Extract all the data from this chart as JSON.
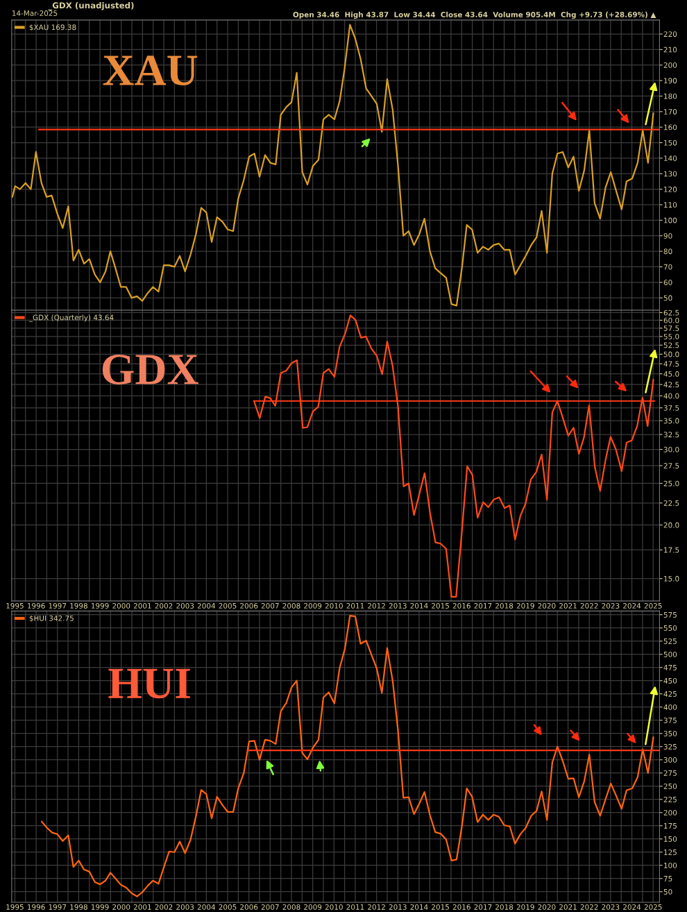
{
  "chart_data": [
    {
      "type": "line",
      "title": "_GDX (unadjusted)",
      "subtitle": "14-Mar-2025",
      "annotations": [
        "Open 34.46  High 43.87  Low 34.44  Close 43.64  Volume 905.4M  Chg +9.73 (+28.69%) ▲",
        "XAU"
      ],
      "series": [
        {
          "name": "$XAU 169.38",
          "color": "#d9a023",
          "x": [
            1994.88,
            1995.01,
            1995.24,
            1995.5,
            1995.75,
            1995.99,
            1996.25,
            1996.49,
            1996.73,
            1997.0,
            1997.25,
            1997.51,
            1997.75,
            1998.0,
            1998.25,
            1998.5,
            1998.76,
            1999.01,
            1999.26,
            1999.49,
            1999.73,
            1999.98,
            2000.23,
            2000.49,
            2000.74,
            2000.99,
            2001.24,
            2001.49,
            2001.75,
            2002.0,
            2002.25,
            2002.5,
            2002.75,
            2003.0,
            2003.26,
            2003.51,
            2003.76,
            2004.0,
            2004.25,
            2004.5,
            2004.76,
            2005.01,
            2005.26,
            2005.5,
            2005.76,
            2006.01,
            2006.26,
            2006.5,
            2006.76,
            2007.01,
            2007.26,
            2007.5,
            2007.76,
            2008.0,
            2008.25,
            2008.51,
            2008.75,
            2009.01,
            2009.27,
            2009.5,
            2009.75,
            2010.02,
            2010.27,
            2010.49,
            2010.75,
            2011.0,
            2011.25,
            2011.51,
            2011.76,
            2012.01,
            2012.25,
            2012.5,
            2012.76,
            2013.01,
            2013.26,
            2013.51,
            2013.76,
            2014.01,
            2014.25,
            2014.51,
            2014.76,
            2015.01,
            2015.27,
            2015.52,
            2015.76,
            2016.02,
            2016.24,
            2016.49,
            2016.75,
            2017.0,
            2017.25,
            2017.5,
            2017.75,
            2018.0,
            2018.26,
            2018.51,
            2018.76,
            2019.01,
            2019.27,
            2019.52,
            2019.76,
            2020.01,
            2020.26,
            2020.5,
            2020.75,
            2021.01,
            2021.26,
            2021.51,
            2021.76,
            2022.0,
            2022.25,
            2022.51,
            2022.76,
            2023.01,
            2023.26,
            2023.52,
            2023.75,
            2024.02,
            2024.27,
            2024.51,
            2024.76,
            2025.01
          ],
          "values": [
            115,
            122,
            120,
            124,
            120,
            144,
            124,
            115,
            116,
            104,
            95,
            109,
            74,
            81,
            72,
            75,
            65,
            60,
            67,
            80,
            69,
            57,
            57,
            50,
            51,
            48,
            53,
            57,
            54,
            71,
            71,
            70,
            77,
            67,
            78,
            91,
            108,
            105,
            86,
            102,
            99,
            94,
            93,
            114,
            126,
            141,
            143,
            128,
            142,
            137,
            136,
            168,
            173,
            176,
            195,
            131,
            123,
            135,
            139,
            165,
            168,
            165,
            177,
            197,
            226,
            217,
            204,
            185,
            180,
            175,
            157,
            191,
            171,
            135,
            90,
            93,
            84,
            91,
            101,
            80,
            69,
            66,
            63,
            46,
            45,
            70,
            97,
            94,
            79,
            83,
            81,
            84,
            85,
            81,
            81,
            65,
            71,
            77,
            84,
            89,
            106,
            79,
            130,
            143,
            144,
            134,
            141,
            119,
            132,
            158,
            111,
            101,
            121,
            131,
            119,
            107,
            125,
            127,
            137,
            158,
            137,
            169
          ]
        },
        {
          "color": "#ff3a1a",
          "x": [
            1996.12,
            2025.3
          ],
          "values": [
            158.5,
            158.5
          ]
        }
      ],
      "xlim": [
        1994.85,
        2025.3
      ],
      "ylim": [
        42,
        229
      ],
      "xticks": [
        1995,
        {
          "value": 1995.5,
          "label": null
        },
        1996,
        {
          "value": 1996.5,
          "label": null
        },
        1997,
        {
          "value": 1997.5,
          "label": null
        },
        1998,
        {
          "value": 1998.5,
          "label": null
        },
        1999,
        {
          "value": 1999.5,
          "label": null
        },
        2000,
        {
          "value": 2000.5,
          "label": null
        },
        2001,
        {
          "value": 2001.5,
          "label": null
        },
        2002,
        {
          "value": 2002.5,
          "label": null
        },
        2003,
        {
          "value": 2003.5,
          "label": null
        },
        2004,
        {
          "value": 2004.5,
          "label": null
        },
        2005,
        {
          "value": 2005.5,
          "label": null
        },
        2006,
        {
          "value": 2006.5,
          "label": null
        },
        2007,
        {
          "value": 2007.5,
          "label": null
        },
        2008,
        {
          "value": 2008.5,
          "label": null
        },
        2009,
        {
          "value": 2009.5,
          "label": null
        },
        2010,
        {
          "value": 2010.5,
          "label": null
        },
        2011,
        {
          "value": 2011.5,
          "label": null
        },
        2012,
        {
          "value": 2012.5,
          "label": null
        },
        2013,
        {
          "value": 2013.5,
          "label": null
        },
        2014,
        {
          "value": 2014.5,
          "label": null
        },
        2015,
        {
          "value": 2015.5,
          "label": null
        },
        2016,
        {
          "value": 2016.5,
          "label": null
        },
        2017,
        {
          "value": 2017.5,
          "label": null
        },
        2018,
        {
          "value": 2018.5,
          "label": null
        },
        2019,
        {
          "value": 2019.5,
          "label": null
        },
        2020,
        {
          "value": 2020.5,
          "label": null
        },
        2021,
        {
          "value": 2021.5,
          "label": null
        },
        2022,
        {
          "value": 2022.5,
          "label": null
        },
        2023,
        {
          "value": 2023.5,
          "label": null
        },
        2024,
        {
          "value": 2024.5,
          "label": null
        },
        2025
      ],
      "yticks": [
        50,
        60,
        70,
        80,
        90,
        100,
        110,
        120,
        130,
        140,
        150,
        160,
        170,
        180,
        190,
        200,
        210,
        220
      ],
      "tick_labels": "y",
      "grid": true,
      "legend": "top left"
    },
    {
      "type": "line",
      "log": true,
      "annotations": [
        "GDX"
      ],
      "series": [
        {
          "name": "_GDX (Quarterly) 43.64",
          "color": "#ff4a1a",
          "x": [
            2006.24,
            2006.51,
            2006.77,
            2007.0,
            2007.24,
            2007.5,
            2007.76,
            2008.01,
            2008.26,
            2008.53,
            2008.75,
            2009.01,
            2009.26,
            2009.5,
            2009.75,
            2010.02,
            2010.26,
            2010.52,
            2010.77,
            2011.01,
            2011.27,
            2011.5,
            2011.76,
            2012.01,
            2012.26,
            2012.5,
            2012.75,
            2013.01,
            2013.27,
            2013.51,
            2013.76,
            2014.0,
            2014.26,
            2014.51,
            2014.77,
            2015.01,
            2015.27,
            2015.52,
            2015.74,
            2016.01,
            2016.26,
            2016.5,
            2016.75,
            2017.01,
            2017.25,
            2017.5,
            2017.76,
            2018.02,
            2018.26,
            2018.51,
            2018.76,
            2019.0,
            2019.25,
            2019.51,
            2019.76,
            2020.01,
            2020.26,
            2020.5,
            2020.75,
            2021.01,
            2021.26,
            2021.51,
            2021.75,
            2021.99,
            2022.26,
            2022.51,
            2022.76,
            2023.0,
            2023.25,
            2023.52,
            2023.75,
            2024.0,
            2024.25,
            2024.5,
            2024.74,
            2025.01
          ],
          "values": [
            38.9,
            35.5,
            39.8,
            39.5,
            37.9,
            45.2,
            45.8,
            47.7,
            48.4,
            33.7,
            33.8,
            36.8,
            37.7,
            45.2,
            46.2,
            44.3,
            52.0,
            55.8,
            61.6,
            60.1,
            54.6,
            55.0,
            51.5,
            49.6,
            44.9,
            53.5,
            47.1,
            37.7,
            24.6,
            25.0,
            21.1,
            23.5,
            26.4,
            21.4,
            18.2,
            18.1,
            17.6,
            13.6,
            13.6,
            19.3,
            27.4,
            26.2,
            20.8,
            22.6,
            22.0,
            22.9,
            23.2,
            21.9,
            22.2,
            18.5,
            21.0,
            22.4,
            25.5,
            26.6,
            29.2,
            22.9,
            36.6,
            38.9,
            35.6,
            32.3,
            33.7,
            29.3,
            32.0,
            38.0,
            27.3,
            24.0,
            28.3,
            32.1,
            30.0,
            26.7,
            31.1,
            31.5,
            34.0,
            39.6,
            34.0,
            43.64
          ]
        },
        {
          "color": "#ff3a1a",
          "x": [
            2006.24,
            2025.07
          ],
          "values": [
            38.9,
            38.9
          ]
        }
      ],
      "xlim": [
        1994.85,
        2025.3
      ],
      "ylim": [
        13.3,
        63.3
      ],
      "xticks": [
        1995,
        {
          "value": 1995.5,
          "label": null
        },
        1996,
        {
          "value": 1996.5,
          "label": null
        },
        1997,
        {
          "value": 1997.5,
          "label": null
        },
        1998,
        {
          "value": 1998.5,
          "label": null
        },
        1999,
        {
          "value": 1999.5,
          "label": null
        },
        2000,
        {
          "value": 2000.5,
          "label": null
        },
        2001,
        {
          "value": 2001.5,
          "label": null
        },
        2002,
        {
          "value": 2002.5,
          "label": null
        },
        2003,
        {
          "value": 2003.5,
          "label": null
        },
        2004,
        {
          "value": 2004.5,
          "label": null
        },
        2005,
        {
          "value": 2005.5,
          "label": null
        },
        2006,
        {
          "value": 2006.5,
          "label": null
        },
        2007,
        {
          "value": 2007.5,
          "label": null
        },
        2008,
        {
          "value": 2008.5,
          "label": null
        },
        2009,
        {
          "value": 2009.5,
          "label": null
        },
        2010,
        {
          "value": 2010.5,
          "label": null
        },
        2011,
        {
          "value": 2011.5,
          "label": null
        },
        2012,
        {
          "value": 2012.5,
          "label": null
        },
        2013,
        {
          "value": 2013.5,
          "label": null
        },
        2014,
        {
          "value": 2014.5,
          "label": null
        },
        2015,
        {
          "value": 2015.5,
          "label": null
        },
        2016,
        {
          "value": 2016.5,
          "label": null
        },
        2017,
        {
          "value": 2017.5,
          "label": null
        },
        2018,
        {
          "value": 2018.5,
          "label": null
        },
        2019,
        {
          "value": 2019.5,
          "label": null
        },
        2020,
        {
          "value": 2020.5,
          "label": null
        },
        2021,
        {
          "value": 2021.5,
          "label": null
        },
        2022,
        {
          "value": 2022.5,
          "label": null
        },
        2023,
        {
          "value": 2023.5,
          "label": null
        },
        2024,
        {
          "value": 2024.5,
          "label": null
        },
        2025
      ],
      "yticks": [
        {
          "value": 15,
          "label": "15.0"
        },
        17.5,
        {
          "value": 20,
          "label": "20.0"
        },
        22.5,
        {
          "value": 25,
          "label": "25.0"
        },
        27.5,
        {
          "value": 30,
          "label": "30.0"
        },
        32.5,
        {
          "value": 35,
          "label": "35.0"
        },
        37.5,
        {
          "value": 40,
          "label": "40.0"
        },
        42.5,
        {
          "value": 45,
          "label": "45.0"
        },
        47.5,
        {
          "value": 50,
          "label": "50.0"
        },
        52.5,
        {
          "value": 55,
          "label": "55.0"
        },
        57.5,
        {
          "value": 60,
          "label": "60.0"
        },
        62.5
      ],
      "grid": true,
      "legend": "top left"
    },
    {
      "type": "line",
      "annotations": [
        "HUI"
      ],
      "series": [
        {
          "name": "$HUI 342.75",
          "color": "#ff6410",
          "x": [
            1996.26,
            1996.51,
            1996.75,
            1997.0,
            1997.25,
            1997.51,
            1997.75,
            1998.0,
            1998.25,
            1998.5,
            1998.76,
            1999.01,
            1999.26,
            1999.49,
            1999.73,
            1999.98,
            2000.23,
            2000.49,
            2000.74,
            2000.99,
            2001.24,
            2001.49,
            2001.75,
            2002.0,
            2002.25,
            2002.5,
            2002.75,
            2003.0,
            2003.26,
            2003.51,
            2003.76,
            2004.0,
            2004.25,
            2004.5,
            2004.76,
            2005.01,
            2005.26,
            2005.5,
            2005.76,
            2006.01,
            2006.26,
            2006.5,
            2006.76,
            2007.01,
            2007.26,
            2007.5,
            2007.76,
            2008.0,
            2008.25,
            2008.51,
            2008.75,
            2009.01,
            2009.27,
            2009.5,
            2009.75,
            2010.02,
            2010.27,
            2010.51,
            2010.75,
            2011.0,
            2011.25,
            2011.51,
            2011.76,
            2012.01,
            2012.25,
            2012.5,
            2012.76,
            2013.01,
            2013.26,
            2013.51,
            2013.76,
            2014.01,
            2014.25,
            2014.51,
            2014.76,
            2015.01,
            2015.27,
            2015.52,
            2015.76,
            2016.02,
            2016.24,
            2016.49,
            2016.75,
            2017.0,
            2017.25,
            2017.5,
            2017.75,
            2018.0,
            2018.26,
            2018.51,
            2018.76,
            2019.01,
            2019.27,
            2019.52,
            2019.76,
            2020.01,
            2020.26,
            2020.5,
            2020.75,
            2021.01,
            2021.26,
            2021.51,
            2021.76,
            2022.0,
            2022.25,
            2022.51,
            2022.76,
            2023.01,
            2023.26,
            2023.52,
            2023.75,
            2024.02,
            2024.27,
            2024.51,
            2024.76,
            2025.01
          ],
          "values": [
            183,
            171,
            162,
            159,
            146,
            157,
            97,
            109,
            92,
            88,
            68,
            64,
            71,
            86,
            75,
            63,
            58,
            47,
            41,
            49,
            61,
            71,
            65,
            96,
            126,
            125,
            145,
            123,
            149,
            193,
            243,
            235,
            189,
            230,
            214,
            201,
            201,
            246,
            275,
            335,
            336,
            300,
            338,
            336,
            330,
            392,
            408,
            437,
            450,
            313,
            301,
            323,
            338,
            418,
            428,
            407,
            475,
            510,
            573,
            572,
            520,
            526,
            499,
            473,
            427,
            512,
            449,
            355,
            228,
            229,
            197,
            217,
            239,
            195,
            163,
            160,
            149,
            109,
            111,
            176,
            246,
            230,
            182,
            196,
            186,
            196,
            192,
            176,
            174,
            141,
            159,
            171,
            194,
            203,
            240,
            186,
            295,
            325,
            298,
            264,
            265,
            229,
            259,
            310,
            220,
            194,
            225,
            255,
            232,
            207,
            242,
            246,
            267,
            320,
            275,
            343
          ]
        },
        {
          "color": "#ff3a1a",
          "x": [
            2005.93,
            2025.3
          ],
          "values": [
            318,
            318
          ]
        }
      ],
      "xlim": [
        1994.85,
        2025.3
      ],
      "ylim": [
        30,
        582
      ],
      "xticks": [
        1995,
        {
          "value": 1995.5,
          "label": null
        },
        1996,
        {
          "value": 1996.5,
          "label": null
        },
        1997,
        {
          "value": 1997.5,
          "label": null
        },
        1998,
        {
          "value": 1998.5,
          "label": null
        },
        1999,
        {
          "value": 1999.5,
          "label": null
        },
        2000,
        {
          "value": 2000.5,
          "label": null
        },
        2001,
        {
          "value": 2001.5,
          "label": null
        },
        2002,
        {
          "value": 2002.5,
          "label": null
        },
        2003,
        {
          "value": 2003.5,
          "label": null
        },
        2004,
        {
          "value": 2004.5,
          "label": null
        },
        2005,
        {
          "value": 2005.5,
          "label": null
        },
        2006,
        {
          "value": 2006.5,
          "label": null
        },
        2007,
        {
          "value": 2007.5,
          "label": null
        },
        2008,
        {
          "value": 2008.5,
          "label": null
        },
        2009,
        {
          "value": 2009.5,
          "label": null
        },
        2010,
        {
          "value": 2010.5,
          "label": null
        },
        2011,
        {
          "value": 2011.5,
          "label": null
        },
        2012,
        {
          "value": 2012.5,
          "label": null
        },
        2013,
        {
          "value": 2013.5,
          "label": null
        },
        2014,
        {
          "value": 2014.5,
          "label": null
        },
        2015,
        {
          "value": 2015.5,
          "label": null
        },
        2016,
        {
          "value": 2016.5,
          "label": null
        },
        2017,
        {
          "value": 2017.5,
          "label": null
        },
        2018,
        {
          "value": 2018.5,
          "label": null
        },
        2019,
        {
          "value": 2019.5,
          "label": null
        },
        2020,
        {
          "value": 2020.5,
          "label": null
        },
        2021,
        {
          "value": 2021.5,
          "label": null
        },
        2022,
        {
          "value": 2022.5,
          "label": null
        },
        2023,
        {
          "value": 2023.5,
          "label": null
        },
        2024,
        {
          "value": 2024.5,
          "label": null
        },
        2025
      ],
      "yticks": [
        50,
        75,
        100,
        125,
        150,
        175,
        200,
        225,
        250,
        275,
        300,
        325,
        350,
        375,
        400,
        425,
        450,
        475,
        500,
        525,
        550,
        575
      ],
      "grid": true,
      "legend": "top left"
    }
  ]
}
